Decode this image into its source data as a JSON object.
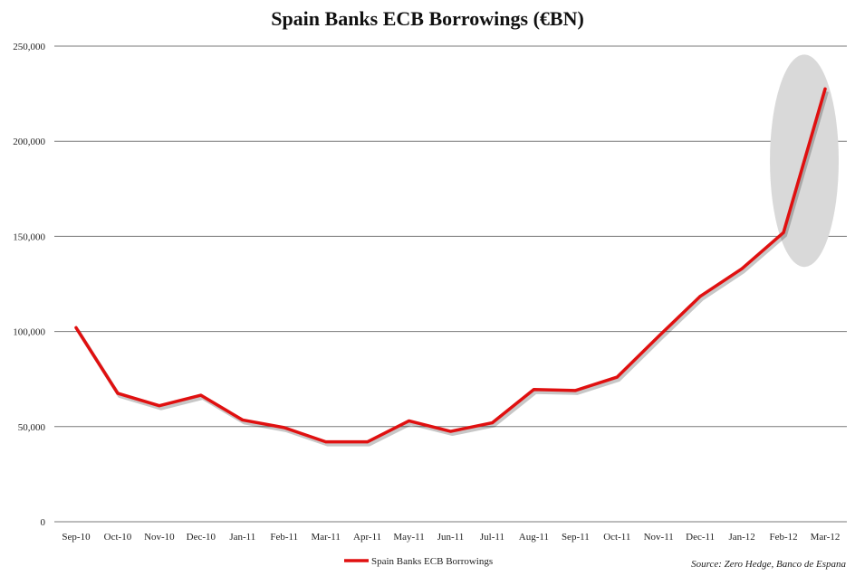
{
  "chart_data": {
    "type": "line",
    "title": "Spain Banks ECB Borrowings (€BN)",
    "xlabel": "",
    "ylabel": "",
    "categories": [
      "Sep-10",
      "Oct-10",
      "Nov-10",
      "Dec-10",
      "Jan-11",
      "Feb-11",
      "Mar-11",
      "Apr-11",
      "May-11",
      "Jun-11",
      "Jul-11",
      "Aug-11",
      "Sep-11",
      "Oct-11",
      "Nov-11",
      "Dec-11",
      "Jan-12",
      "Feb-12",
      "Mar-12"
    ],
    "series": [
      {
        "name": "Spain Banks ECB Borrowings",
        "color": "#e01010",
        "values": [
          102000,
          67500,
          61000,
          66500,
          53500,
          49500,
          42000,
          42000,
          53000,
          47500,
          52000,
          69500,
          69000,
          76000,
          97500,
          118500,
          133000,
          152000,
          227500
        ]
      }
    ],
    "ylim": [
      0,
      250000
    ],
    "yticks": [
      "0",
      "50,000",
      "100,000",
      "150,000",
      "200,000",
      "250,000"
    ],
    "ytick_values": [
      0,
      50000,
      100000,
      150000,
      200000,
      250000
    ],
    "grid": true,
    "legend_position": "bottom",
    "highlight": {
      "from_category": "Feb-12",
      "to_category": "Mar-12",
      "color": "#d9d9d9"
    }
  },
  "source_note": "Source: Zero Hedge, Banco de Espana"
}
